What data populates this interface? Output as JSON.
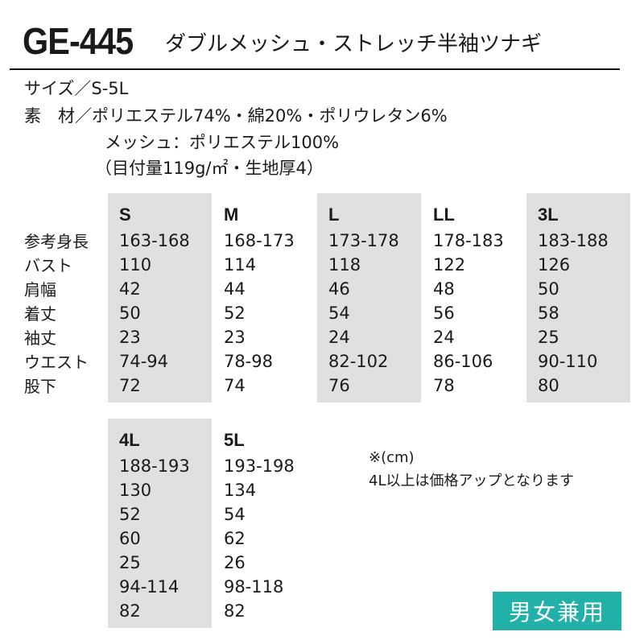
{
  "header": {
    "code": "GE-445",
    "name": "ダブルメッシュ・ストレッチ半袖ツナギ"
  },
  "specs": {
    "size": "サイズ／S-5L",
    "material": "素　材／ポリエステル74%・綿20%・ポリウレタン6%",
    "mesh": "メッシュ：ポリエステル100%",
    "weight": "（目付量119g/㎡・生地厚4）"
  },
  "row_labels": [
    "参考身長",
    "バスト",
    "肩幅",
    "着丈",
    "袖丈",
    "ウエスト",
    "股下"
  ],
  "sizes_top": [
    {
      "size": "S",
      "values": [
        "163-168",
        "110",
        "42",
        "50",
        "23",
        "74-94",
        "72"
      ]
    },
    {
      "size": "M",
      "values": [
        "168-173",
        "114",
        "44",
        "52",
        "23",
        "78-98",
        "74"
      ]
    },
    {
      "size": "L",
      "values": [
        "173-178",
        "118",
        "46",
        "54",
        "24",
        "82-102",
        "76"
      ]
    },
    {
      "size": "LL",
      "values": [
        "178-183",
        "122",
        "48",
        "56",
        "24",
        "86-106",
        "78"
      ]
    },
    {
      "size": "3L",
      "values": [
        "183-188",
        "126",
        "50",
        "58",
        "25",
        "90-110",
        "80"
      ]
    }
  ],
  "sizes_bottom": [
    {
      "size": "4L",
      "values": [
        "188-193",
        "130",
        "52",
        "60",
        "25",
        "94-114",
        "82"
      ]
    },
    {
      "size": "5L",
      "values": [
        "193-198",
        "134",
        "54",
        "62",
        "26",
        "98-118",
        "82"
      ]
    }
  ],
  "notes": {
    "unit": "※(cm)",
    "price": "4L以上は価格アップとなります"
  },
  "badge": {
    "label": "男女兼用",
    "color": "#22b1a8"
  }
}
